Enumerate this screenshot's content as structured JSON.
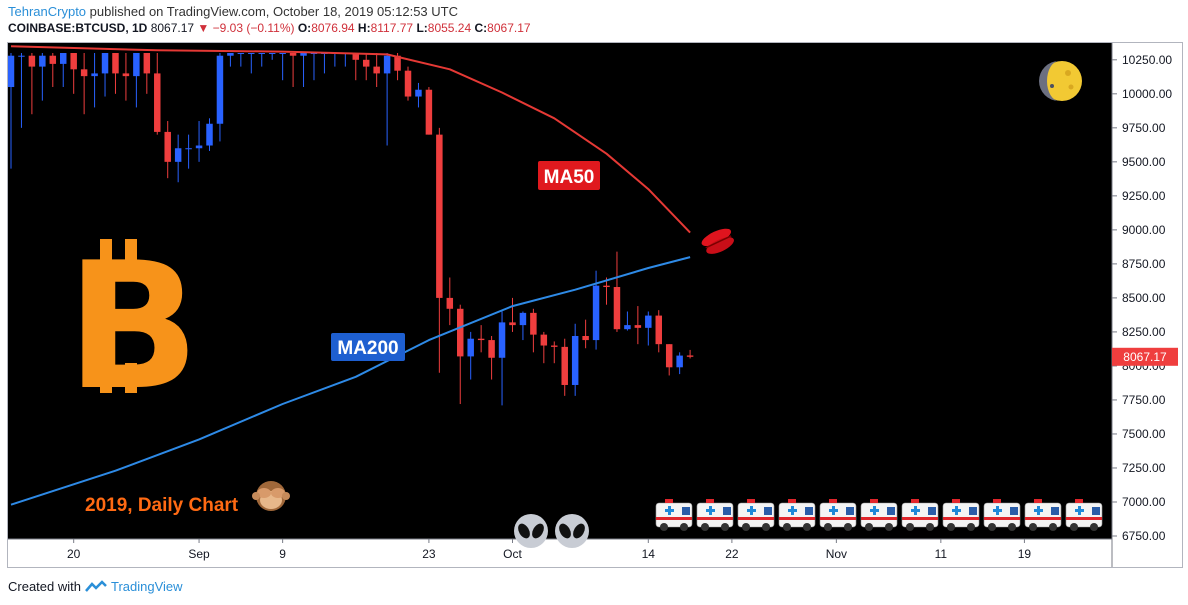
{
  "header": {
    "author": "TehranCrypto",
    "published": "published on TradingView.com, October 18, 2019 05:12:53 UTC",
    "symbol": "COINBASE:BTCUSD, 1D",
    "last": "8067.17",
    "change": "−9.03 (−0.11%)",
    "o_label": "O:",
    "o_value": "8076.94",
    "h_label": "H:",
    "h_value": "8117.77",
    "l_label": "L:",
    "l_value": "8055.24",
    "c_label": "C:",
    "c_value": "8067.17"
  },
  "footer": {
    "created_with": "Created with",
    "brand": "TradingView"
  },
  "colors": {
    "up": "#2962ff",
    "down": "#ef3e3e",
    "ma50": "#e53935",
    "ma200": "#2e8ae6",
    "background": "#000000",
    "bitcoin": "#f7931a",
    "annotation": "#ff6a13"
  },
  "annotations": {
    "ma50_label": "MA50",
    "ma200_label": "MA200",
    "caption": "2019, Daily Chart",
    "bitcoin_symbol": "B"
  },
  "icons": [
    "moon-icon",
    "kiss-icon",
    "see-no-evil-monkey-icon",
    "alien-icon",
    "ambulance-icon"
  ],
  "chart_data": {
    "type": "candlestick",
    "title": "",
    "price_tag": "8067.17",
    "ylim": [
      6750,
      10300
    ],
    "y_ticks": [
      6750,
      7000,
      7250,
      7500,
      7750,
      8000,
      8250,
      8500,
      8750,
      9000,
      9250,
      9500,
      9750,
      10000,
      10250
    ],
    "y_tick_labels": [
      "6750.00",
      "7000.00",
      "7250.00",
      "7500.00",
      "7750.00",
      "8000.00",
      "8250.00",
      "8500.00",
      "8750.00",
      "9000.00",
      "9250.00",
      "9500.00",
      "9750.00",
      "10000.00",
      "10250.00"
    ],
    "x_ticks": [
      "20",
      "Sep",
      "9",
      "23",
      "Oct",
      "14",
      "22",
      "Nov",
      "11",
      "19"
    ],
    "x_tick_dates": [
      "2019-08-20",
      "2019-09-01",
      "2019-09-09",
      "2019-09-23",
      "2019-10-01",
      "2019-10-14",
      "2019-10-22",
      "2019-11-01",
      "2019-11-11",
      "2019-11-19"
    ],
    "x_range": [
      "2019-08-14",
      "2019-11-27"
    ],
    "grid": false,
    "candles": [
      {
        "date": "2019-08-14",
        "o": 10050,
        "h": 10300,
        "l": 9450,
        "c": 10280
      },
      {
        "date": "2019-08-15",
        "o": 10280,
        "h": 10300,
        "l": 9750,
        "c": 10280
      },
      {
        "date": "2019-08-16",
        "o": 10280,
        "h": 10300,
        "l": 9850,
        "c": 10200
      },
      {
        "date": "2019-08-17",
        "o": 10200,
        "h": 10300,
        "l": 9950,
        "c": 10280
      },
      {
        "date": "2019-08-18",
        "o": 10280,
        "h": 10300,
        "l": 10050,
        "c": 10220
      },
      {
        "date": "2019-08-19",
        "o": 10220,
        "h": 10300,
        "l": 10050,
        "c": 10300
      },
      {
        "date": "2019-08-20",
        "o": 10300,
        "h": 10300,
        "l": 10000,
        "c": 10180
      },
      {
        "date": "2019-08-21",
        "o": 10180,
        "h": 10300,
        "l": 9850,
        "c": 10130
      },
      {
        "date": "2019-08-22",
        "o": 10130,
        "h": 10300,
        "l": 9900,
        "c": 10150
      },
      {
        "date": "2019-08-23",
        "o": 10150,
        "h": 10300,
        "l": 9980,
        "c": 10300
      },
      {
        "date": "2019-08-24",
        "o": 10300,
        "h": 10300,
        "l": 10000,
        "c": 10150
      },
      {
        "date": "2019-08-25",
        "o": 10150,
        "h": 10300,
        "l": 9950,
        "c": 10130
      },
      {
        "date": "2019-08-26",
        "o": 10130,
        "h": 10300,
        "l": 9900,
        "c": 10300
      },
      {
        "date": "2019-08-27",
        "o": 10300,
        "h": 10300,
        "l": 10000,
        "c": 10150
      },
      {
        "date": "2019-08-28",
        "o": 10150,
        "h": 10300,
        "l": 9700,
        "c": 9720
      },
      {
        "date": "2019-08-29",
        "o": 9720,
        "h": 9800,
        "l": 9380,
        "c": 9500
      },
      {
        "date": "2019-08-30",
        "o": 9500,
        "h": 9700,
        "l": 9350,
        "c": 9600
      },
      {
        "date": "2019-08-31",
        "o": 9600,
        "h": 9700,
        "l": 9450,
        "c": 9600
      },
      {
        "date": "2019-09-01",
        "o": 9600,
        "h": 9800,
        "l": 9500,
        "c": 9620
      },
      {
        "date": "2019-09-02",
        "o": 9620,
        "h": 9820,
        "l": 9580,
        "c": 9780
      },
      {
        "date": "2019-09-03",
        "o": 9780,
        "h": 10300,
        "l": 9650,
        "c": 10280
      },
      {
        "date": "2019-09-04",
        "o": 10280,
        "h": 10300,
        "l": 10200,
        "c": 10300
      },
      {
        "date": "2019-09-05",
        "o": 10300,
        "h": 10300,
        "l": 10200,
        "c": 10300
      },
      {
        "date": "2019-09-06",
        "o": 10300,
        "h": 10300,
        "l": 10150,
        "c": 10300
      },
      {
        "date": "2019-09-07",
        "o": 10300,
        "h": 10300,
        "l": 10200,
        "c": 10300
      },
      {
        "date": "2019-09-08",
        "o": 10300,
        "h": 10300,
        "l": 10250,
        "c": 10300
      },
      {
        "date": "2019-09-09",
        "o": 10300,
        "h": 10300,
        "l": 10100,
        "c": 10300
      },
      {
        "date": "2019-09-10",
        "o": 10300,
        "h": 10300,
        "l": 10050,
        "c": 10280
      },
      {
        "date": "2019-09-11",
        "o": 10280,
        "h": 10300,
        "l": 10050,
        "c": 10300
      },
      {
        "date": "2019-09-12",
        "o": 10300,
        "h": 10300,
        "l": 10100,
        "c": 10300
      },
      {
        "date": "2019-09-13",
        "o": 10300,
        "h": 10300,
        "l": 10150,
        "c": 10300
      },
      {
        "date": "2019-09-14",
        "o": 10300,
        "h": 10300,
        "l": 10200,
        "c": 10300
      },
      {
        "date": "2019-09-15",
        "o": 10300,
        "h": 10300,
        "l": 10200,
        "c": 10300
      },
      {
        "date": "2019-09-16",
        "o": 10300,
        "h": 10300,
        "l": 10100,
        "c": 10250
      },
      {
        "date": "2019-09-17",
        "o": 10250,
        "h": 10300,
        "l": 10100,
        "c": 10200
      },
      {
        "date": "2019-09-18",
        "o": 10200,
        "h": 10300,
        "l": 10050,
        "c": 10150
      },
      {
        "date": "2019-09-19",
        "o": 10150,
        "h": 10300,
        "l": 9620,
        "c": 10280
      },
      {
        "date": "2019-09-20",
        "o": 10280,
        "h": 10300,
        "l": 10100,
        "c": 10170
      },
      {
        "date": "2019-09-21",
        "o": 10170,
        "h": 10200,
        "l": 9950,
        "c": 9980
      },
      {
        "date": "2019-09-22",
        "o": 9980,
        "h": 10080,
        "l": 9900,
        "c": 10030
      },
      {
        "date": "2019-09-23",
        "o": 10030,
        "h": 10050,
        "l": 9700,
        "c": 9700
      },
      {
        "date": "2019-09-24",
        "o": 9700,
        "h": 9750,
        "l": 7950,
        "c": 8500
      },
      {
        "date": "2019-09-25",
        "o": 8500,
        "h": 8650,
        "l": 8300,
        "c": 8420
      },
      {
        "date": "2019-09-26",
        "o": 8420,
        "h": 8450,
        "l": 7720,
        "c": 8070
      },
      {
        "date": "2019-09-27",
        "o": 8070,
        "h": 8250,
        "l": 7900,
        "c": 8200
      },
      {
        "date": "2019-09-28",
        "o": 8200,
        "h": 8300,
        "l": 8100,
        "c": 8190
      },
      {
        "date": "2019-09-29",
        "o": 8190,
        "h": 8220,
        "l": 7900,
        "c": 8060
      },
      {
        "date": "2019-09-30",
        "o": 8060,
        "h": 8400,
        "l": 7710,
        "c": 8320
      },
      {
        "date": "2019-10-01",
        "o": 8320,
        "h": 8500,
        "l": 8250,
        "c": 8300
      },
      {
        "date": "2019-10-02",
        "o": 8300,
        "h": 8400,
        "l": 8190,
        "c": 8390
      },
      {
        "date": "2019-10-03",
        "o": 8390,
        "h": 8420,
        "l": 8100,
        "c": 8230
      },
      {
        "date": "2019-10-04",
        "o": 8230,
        "h": 8250,
        "l": 8020,
        "c": 8150
      },
      {
        "date": "2019-10-05",
        "o": 8150,
        "h": 8180,
        "l": 8020,
        "c": 8140
      },
      {
        "date": "2019-10-06",
        "o": 8140,
        "h": 8200,
        "l": 7780,
        "c": 7860
      },
      {
        "date": "2019-10-07",
        "o": 7860,
        "h": 8310,
        "l": 7780,
        "c": 8220
      },
      {
        "date": "2019-10-08",
        "o": 8220,
        "h": 8340,
        "l": 8130,
        "c": 8190
      },
      {
        "date": "2019-10-09",
        "o": 8190,
        "h": 8700,
        "l": 8120,
        "c": 8590
      },
      {
        "date": "2019-10-10",
        "o": 8590,
        "h": 8650,
        "l": 8450,
        "c": 8580
      },
      {
        "date": "2019-10-11",
        "o": 8580,
        "h": 8840,
        "l": 8250,
        "c": 8270
      },
      {
        "date": "2019-10-12",
        "o": 8270,
        "h": 8400,
        "l": 8260,
        "c": 8300
      },
      {
        "date": "2019-10-13",
        "o": 8300,
        "h": 8440,
        "l": 8160,
        "c": 8280
      },
      {
        "date": "2019-10-14",
        "o": 8280,
        "h": 8400,
        "l": 8150,
        "c": 8370
      },
      {
        "date": "2019-10-15",
        "o": 8370,
        "h": 8410,
        "l": 8100,
        "c": 8160
      },
      {
        "date": "2019-10-16",
        "o": 8160,
        "h": 8160,
        "l": 7930,
        "c": 7990
      },
      {
        "date": "2019-10-17",
        "o": 7990,
        "h": 8100,
        "l": 7940,
        "c": 8076
      },
      {
        "date": "2019-10-18",
        "o": 8076.94,
        "h": 8117.77,
        "l": 8055.24,
        "c": 8067.17
      }
    ],
    "series": [
      {
        "name": "MA50",
        "points": [
          {
            "date": "2019-08-14",
            "y": 10350
          },
          {
            "date": "2019-08-28",
            "y": 10320
          },
          {
            "date": "2019-09-09",
            "y": 10310
          },
          {
            "date": "2019-09-19",
            "y": 10290
          },
          {
            "date": "2019-09-25",
            "y": 10180
          },
          {
            "date": "2019-09-30",
            "y": 10010
          },
          {
            "date": "2019-10-05",
            "y": 9820
          },
          {
            "date": "2019-10-10",
            "y": 9560
          },
          {
            "date": "2019-10-14",
            "y": 9300
          },
          {
            "date": "2019-10-18",
            "y": 8980
          }
        ]
      },
      {
        "name": "MA200",
        "points": [
          {
            "date": "2019-08-14",
            "y": 6980
          },
          {
            "date": "2019-08-24",
            "y": 7230
          },
          {
            "date": "2019-09-01",
            "y": 7460
          },
          {
            "date": "2019-09-09",
            "y": 7720
          },
          {
            "date": "2019-09-16",
            "y": 7920
          },
          {
            "date": "2019-09-23",
            "y": 8190
          },
          {
            "date": "2019-10-01",
            "y": 8440
          },
          {
            "date": "2019-10-07",
            "y": 8560
          },
          {
            "date": "2019-10-14",
            "y": 8720
          },
          {
            "date": "2019-10-18",
            "y": 8800
          }
        ]
      }
    ]
  }
}
